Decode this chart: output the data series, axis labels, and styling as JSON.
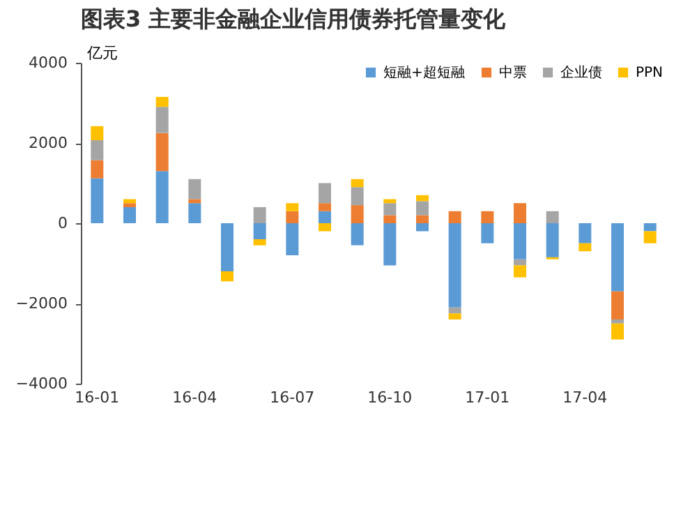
{
  "chart_data": {
    "type": "bar",
    "title": "图表3  主要非金融企业信用债券托管量变化",
    "ylabel": "亿元",
    "categories": [
      "16-01",
      null,
      null,
      "16-04",
      null,
      null,
      "16-07",
      null,
      null,
      "16-10",
      null,
      null,
      "17-01",
      null,
      null,
      "17-04",
      null,
      null
    ],
    "stacked": true,
    "series": [
      {
        "name": "短融+超短融",
        "color": "#5b9bd5",
        "values": [
          1120,
          400,
          1300,
          500,
          -1200,
          -400,
          -800,
          300,
          -550,
          -1050,
          -200,
          -2100,
          -500,
          -900,
          -850,
          -500,
          -1700,
          -200
        ]
      },
      {
        "name": "中票",
        "color": "#ed7d31",
        "values": [
          450,
          100,
          950,
          100,
          0,
          0,
          300,
          200,
          450,
          200,
          200,
          300,
          300,
          500,
          0,
          0,
          -700,
          0
        ]
      },
      {
        "name": "企业债",
        "color": "#a5a5a5",
        "values": [
          500,
          0,
          650,
          500,
          0,
          400,
          0,
          500,
          450,
          300,
          350,
          -150,
          0,
          -150,
          300,
          0,
          -100,
          0
        ]
      },
      {
        "name": "PPN",
        "color": "#ffc000",
        "values": [
          350,
          100,
          250,
          0,
          -250,
          -150,
          200,
          -200,
          200,
          100,
          150,
          -150,
          0,
          -300,
          -50,
          -200,
          -400,
          -300
        ]
      }
    ],
    "ylim": [
      -4000,
      4000
    ],
    "yticks": [
      -4000,
      -2000,
      0,
      2000,
      4000
    ],
    "legend": "top right"
  }
}
